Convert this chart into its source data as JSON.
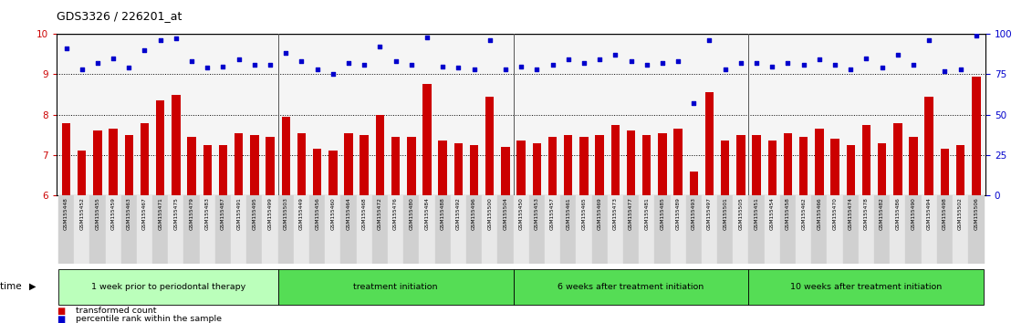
{
  "title": "GDS3326 / 226201_at",
  "ylim_left": [
    6,
    10
  ],
  "ylim_right": [
    0,
    100
  ],
  "yticks_left": [
    6,
    7,
    8,
    9,
    10
  ],
  "yticks_right": [
    0,
    25,
    50,
    75,
    100
  ],
  "ytick_dotted": [
    7,
    8,
    9
  ],
  "bar_color": "#cc0000",
  "dot_color": "#0000cc",
  "groups": [
    {
      "label": "1 week prior to periodontal therapy",
      "start": 0,
      "end": 14
    },
    {
      "label": "treatment initiation",
      "start": 14,
      "end": 29
    },
    {
      "label": "6 weeks after treatment initiation",
      "start": 29,
      "end": 44
    },
    {
      "label": "10 weeks after treatment initiation",
      "start": 44,
      "end": 59
    }
  ],
  "samples": [
    "GSM155448",
    "GSM155452",
    "GSM155455",
    "GSM155459",
    "GSM155463",
    "GSM155467",
    "GSM155471",
    "GSM155475",
    "GSM155479",
    "GSM155483",
    "GSM155487",
    "GSM155491",
    "GSM155495",
    "GSM155499",
    "GSM155503",
    "GSM155449",
    "GSM155456",
    "GSM155460",
    "GSM155464",
    "GSM155468",
    "GSM155472",
    "GSM155476",
    "GSM155480",
    "GSM155484",
    "GSM155488",
    "GSM155492",
    "GSM155496",
    "GSM155500",
    "GSM155504",
    "GSM155450",
    "GSM155453",
    "GSM155457",
    "GSM155461",
    "GSM155465",
    "GSM155469",
    "GSM155473",
    "GSM155477",
    "GSM155481",
    "GSM155485",
    "GSM155489",
    "GSM155493",
    "GSM155497",
    "GSM155501",
    "GSM155505",
    "GSM155451",
    "GSM155454",
    "GSM155458",
    "GSM155462",
    "GSM155466",
    "GSM155470",
    "GSM155474",
    "GSM155478",
    "GSM155482",
    "GSM155486",
    "GSM155490",
    "GSM155494",
    "GSM155498",
    "GSM155502",
    "GSM155506"
  ],
  "bar_values": [
    7.8,
    7.1,
    7.6,
    7.65,
    7.5,
    7.8,
    8.35,
    8.5,
    7.45,
    7.25,
    7.25,
    7.55,
    7.5,
    7.45,
    7.95,
    7.55,
    7.15,
    7.1,
    7.55,
    7.5,
    8.0,
    7.45,
    7.45,
    8.75,
    7.35,
    7.3,
    7.25,
    8.45,
    7.2,
    7.35,
    7.3,
    7.45,
    7.5,
    7.45,
    7.5,
    7.75,
    7.6,
    7.5,
    7.55,
    7.65,
    6.6,
    8.55,
    7.35,
    7.5,
    7.5,
    7.35,
    7.55,
    7.45,
    7.65,
    7.4,
    7.25,
    7.75,
    7.3,
    7.8,
    7.45,
    8.45,
    7.15,
    7.25,
    8.95
  ],
  "dot_values": [
    91,
    78,
    82,
    85,
    79,
    90,
    96,
    97,
    83,
    79,
    80,
    84,
    81,
    81,
    88,
    83,
    78,
    75,
    82,
    81,
    92,
    83,
    81,
    98,
    80,
    79,
    78,
    96,
    78,
    80,
    78,
    81,
    84,
    82,
    84,
    87,
    83,
    81,
    82,
    83,
    57,
    96,
    78,
    82,
    82,
    80,
    82,
    81,
    84,
    81,
    78,
    85,
    79,
    87,
    81,
    96,
    77,
    78,
    99
  ],
  "legend_bar": "transformed count",
  "legend_dot": "percentile rank within the sample",
  "light_green": "#bbffbb",
  "mid_green": "#55dd55",
  "group_border_color": "#000000",
  "separator_color": "#444444"
}
